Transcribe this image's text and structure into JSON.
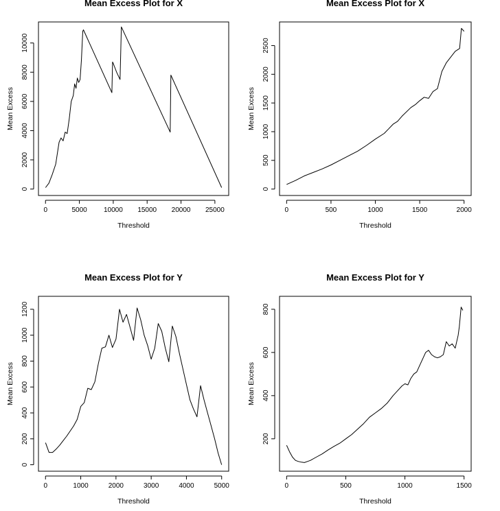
{
  "chart_data": [
    {
      "type": "line",
      "title": "Mean Excess Plot for X",
      "xlabel": "Threshold",
      "ylabel": "Mean Excess",
      "xlim": [
        0,
        26000
      ],
      "ylim": [
        0,
        11000
      ],
      "xticks": [
        0,
        5000,
        10000,
        15000,
        20000,
        25000
      ],
      "yticks": [
        0,
        2000,
        4000,
        6000,
        8000,
        10000
      ],
      "series": [
        {
          "x": [
            0,
            500,
            1000,
            1500,
            2000,
            2300,
            2600,
            2900,
            3200,
            3500,
            3800,
            4100,
            4300,
            4500,
            4700,
            4900,
            5100,
            5300,
            5500,
            5600,
            9800,
            9900,
            10000,
            10500,
            11000,
            11200,
            18400,
            18500,
            26000
          ],
          "y": [
            100,
            400,
            1000,
            1700,
            3200,
            3500,
            3300,
            3900,
            3800,
            4800,
            6000,
            6400,
            7200,
            6900,
            7600,
            7300,
            7500,
            8800,
            10800,
            10900,
            6600,
            8700,
            8600,
            8000,
            7500,
            11100,
            3900,
            7800,
            100
          ]
        }
      ]
    },
    {
      "type": "line",
      "title": "Mean Excess Plot for X",
      "xlabel": "Threshold",
      "ylabel": "Mean Excess",
      "xlim": [
        0,
        2000
      ],
      "ylim": [
        0,
        2800
      ],
      "xticks": [
        0,
        500,
        1000,
        1500,
        2000
      ],
      "yticks": [
        0,
        500,
        1000,
        1500,
        2000,
        2500
      ],
      "series": [
        {
          "x": [
            0,
            100,
            200,
            300,
            400,
            500,
            600,
            700,
            800,
            900,
            1000,
            1100,
            1150,
            1200,
            1250,
            1300,
            1400,
            1450,
            1500,
            1550,
            1600,
            1650,
            1700,
            1750,
            1800,
            1850,
            1900,
            1950,
            1970,
            2000
          ],
          "y": [
            80,
            150,
            230,
            290,
            350,
            420,
            500,
            580,
            660,
            760,
            870,
            970,
            1050,
            1130,
            1180,
            1270,
            1420,
            1470,
            1540,
            1600,
            1580,
            1700,
            1750,
            2050,
            2200,
            2300,
            2400,
            2450,
            2800,
            2750
          ]
        }
      ]
    },
    {
      "type": "line",
      "title": "Mean Excess Plot for Y",
      "xlabel": "Threshold",
      "ylabel": "Mean Excess",
      "xlim": [
        0,
        5000
      ],
      "ylim": [
        0,
        1250
      ],
      "xticks": [
        0,
        1000,
        2000,
        3000,
        4000,
        5000
      ],
      "yticks": [
        0,
        200,
        400,
        600,
        800,
        1000,
        1200
      ],
      "series": [
        {
          "x": [
            0,
            100,
            200,
            300,
            400,
            500,
            600,
            700,
            800,
            900,
            1000,
            1100,
            1200,
            1300,
            1400,
            1500,
            1600,
            1700,
            1800,
            1900,
            2000,
            2100,
            2200,
            2300,
            2400,
            2500,
            2600,
            2700,
            2800,
            2900,
            3000,
            3100,
            3200,
            3300,
            3400,
            3500,
            3600,
            3700,
            3800,
            3900,
            4000,
            4100,
            4200,
            4300,
            4400,
            4500,
            4600,
            4700,
            4800,
            4900,
            5000
          ],
          "y": [
            170,
            95,
            95,
            120,
            150,
            185,
            220,
            260,
            300,
            350,
            450,
            480,
            590,
            580,
            640,
            780,
            900,
            910,
            1000,
            905,
            970,
            1200,
            1100,
            1160,
            1060,
            960,
            1210,
            1120,
            1000,
            920,
            815,
            900,
            1090,
            1030,
            900,
            795,
            1070,
            990,
            860,
            740,
            620,
            500,
            430,
            370,
            610,
            500,
            400,
            300,
            200,
            90,
            0
          ]
        }
      ]
    },
    {
      "type": "line",
      "title": "Mean Excess Plot for Y",
      "xlabel": "Threshold",
      "ylabel": "Mean Excess",
      "xlim": [
        0,
        1500
      ],
      "ylim": [
        80,
        830
      ],
      "xticks": [
        0,
        500,
        1000,
        1500
      ],
      "yticks": [
        200,
        400,
        600,
        800
      ],
      "series": [
        {
          "x": [
            0,
            25,
            50,
            75,
            100,
            125,
            150,
            175,
            200,
            250,
            300,
            350,
            400,
            450,
            500,
            550,
            600,
            650,
            700,
            750,
            800,
            850,
            900,
            950,
            975,
            1000,
            1025,
            1050,
            1075,
            1100,
            1125,
            1150,
            1175,
            1200,
            1225,
            1250,
            1275,
            1300,
            1325,
            1350,
            1375,
            1400,
            1425,
            1450,
            1460,
            1475,
            1490
          ],
          "y": [
            170,
            140,
            115,
            100,
            95,
            92,
            90,
            95,
            100,
            115,
            130,
            148,
            165,
            180,
            200,
            220,
            245,
            270,
            300,
            320,
            340,
            365,
            400,
            430,
            445,
            455,
            450,
            480,
            500,
            510,
            540,
            570,
            600,
            610,
            590,
            580,
            575,
            580,
            590,
            650,
            630,
            640,
            620,
            680,
            720,
            810,
            795
          ]
        }
      ]
    }
  ]
}
